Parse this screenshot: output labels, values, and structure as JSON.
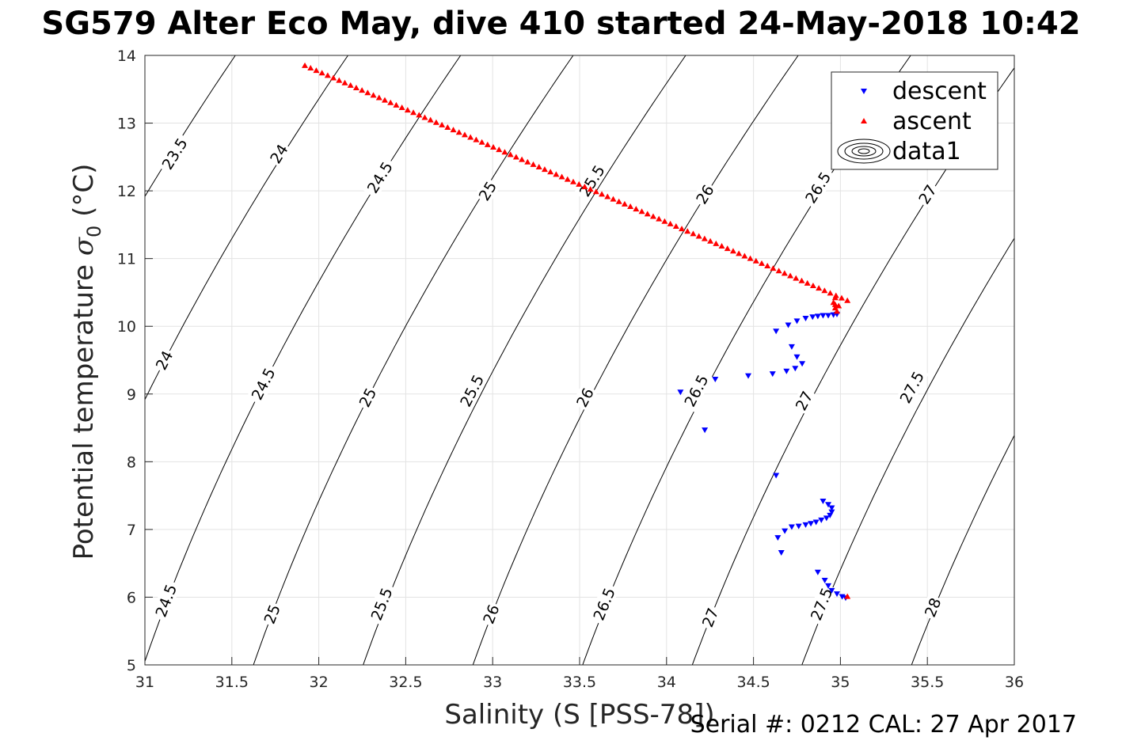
{
  "chart_data": {
    "type": "scatter",
    "title": "SG579 Alter Eco May, dive 410 started 24-May-2018 10:42",
    "xlabel": "Salinity (S [PSS-78])",
    "ylabel": "Potential temperature σ₀ (°C)",
    "ylabel_main": "Potential temperature ",
    "ylabel_sym": "σ",
    "ylabel_sub": "0",
    "ylabel_unit": " (°C)",
    "xlim": [
      31,
      36
    ],
    "ylim": [
      5,
      14
    ],
    "xticks": [
      "31",
      "31.5",
      "32",
      "32.5",
      "33",
      "33.5",
      "34",
      "34.5",
      "35",
      "35.5",
      "36"
    ],
    "yticks": [
      "5",
      "6",
      "7",
      "8",
      "9",
      "10",
      "11",
      "12",
      "13",
      "14"
    ],
    "grid": true,
    "legend_position": "top-right",
    "series": [
      {
        "name": "descent",
        "marker": "triangle-down",
        "color": "#0000ff",
        "points": [
          [
            34.63,
            9.93
          ],
          [
            34.7,
            10.02
          ],
          [
            34.75,
            10.08
          ],
          [
            34.8,
            10.12
          ],
          [
            34.84,
            10.14
          ],
          [
            34.87,
            10.15
          ],
          [
            34.9,
            10.16
          ],
          [
            34.93,
            10.16
          ],
          [
            34.96,
            10.17
          ],
          [
            34.98,
            10.18
          ],
          [
            34.72,
            9.7
          ],
          [
            34.75,
            9.55
          ],
          [
            34.78,
            9.45
          ],
          [
            34.74,
            9.38
          ],
          [
            34.69,
            9.34
          ],
          [
            34.61,
            9.3
          ],
          [
            34.47,
            9.27
          ],
          [
            34.28,
            9.22
          ],
          [
            34.08,
            9.03
          ],
          [
            34.22,
            8.47
          ],
          [
            34.63,
            7.8
          ],
          [
            34.9,
            7.42
          ],
          [
            34.93,
            7.37
          ],
          [
            34.95,
            7.32
          ],
          [
            34.95,
            7.26
          ],
          [
            34.94,
            7.21
          ],
          [
            34.92,
            7.17
          ],
          [
            34.89,
            7.14
          ],
          [
            34.86,
            7.11
          ],
          [
            34.83,
            7.09
          ],
          [
            34.8,
            7.07
          ],
          [
            34.76,
            7.05
          ],
          [
            34.72,
            7.04
          ],
          [
            34.68,
            6.98
          ],
          [
            34.64,
            6.88
          ],
          [
            34.66,
            6.66
          ],
          [
            34.87,
            6.37
          ],
          [
            34.91,
            6.25
          ],
          [
            34.93,
            6.17
          ],
          [
            34.95,
            6.1
          ],
          [
            34.98,
            6.05
          ],
          [
            35.01,
            6.01
          ],
          [
            35.03,
            5.99
          ]
        ]
      },
      {
        "name": "ascent",
        "marker": "triangle-up",
        "color": "#ff0000",
        "line": {
          "from": [
            31.92,
            13.85
          ],
          "to": [
            35.04,
            10.38
          ],
          "count": 96
        },
        "points": [
          [
            34.97,
            10.32
          ],
          [
            34.97,
            10.27
          ],
          [
            34.98,
            10.22
          ],
          [
            34.97,
            10.42
          ],
          [
            34.96,
            10.35
          ],
          [
            34.99,
            10.3
          ],
          [
            35.04,
            6.01
          ]
        ]
      },
      {
        "name": "data1",
        "type": "contour",
        "color": "#000000",
        "levels": [
          23.5,
          24,
          24.5,
          25,
          25.5,
          26,
          26.5,
          27,
          27.5,
          28
        ],
        "labels": [
          {
            "text": "23.5",
            "s": 31.17,
            "t": 12.55
          },
          {
            "text": "24",
            "s": 31.77,
            "t": 12.55
          },
          {
            "text": "24.5",
            "s": 32.35,
            "t": 12.2
          },
          {
            "text": "25",
            "s": 32.97,
            "t": 12.0
          },
          {
            "text": "25.5",
            "s": 33.57,
            "t": 12.15
          },
          {
            "text": "26",
            "s": 34.22,
            "t": 11.95
          },
          {
            "text": "26.5",
            "s": 34.87,
            "t": 12.05
          },
          {
            "text": "27",
            "s": 35.5,
            "t": 11.95
          },
          {
            "text": "24",
            "s": 31.11,
            "t": 9.5
          },
          {
            "text": "24.5",
            "s": 31.68,
            "t": 9.15
          },
          {
            "text": "25",
            "s": 32.28,
            "t": 8.95
          },
          {
            "text": "25.5",
            "s": 32.88,
            "t": 9.05
          },
          {
            "text": "26",
            "s": 33.53,
            "t": 8.95
          },
          {
            "text": "26.5",
            "s": 34.17,
            "t": 9.05
          },
          {
            "text": "27",
            "s": 34.79,
            "t": 8.9
          },
          {
            "text": "27.5",
            "s": 35.41,
            "t": 9.1
          },
          {
            "text": "24.5",
            "s": 31.12,
            "t": 5.95
          },
          {
            "text": "25",
            "s": 31.73,
            "t": 5.75
          },
          {
            "text": "25.5",
            "s": 32.36,
            "t": 5.9
          },
          {
            "text": "26",
            "s": 32.99,
            "t": 5.75
          },
          {
            "text": "26.5",
            "s": 33.64,
            "t": 5.9
          },
          {
            "text": "27",
            "s": 34.25,
            "t": 5.7
          },
          {
            "text": "27.5",
            "s": 34.89,
            "t": 5.9
          },
          {
            "text": "28",
            "s": 35.53,
            "t": 5.85
          }
        ]
      }
    ]
  },
  "footer_note": "Serial #: 0212  CAL: 27 Apr 2017"
}
